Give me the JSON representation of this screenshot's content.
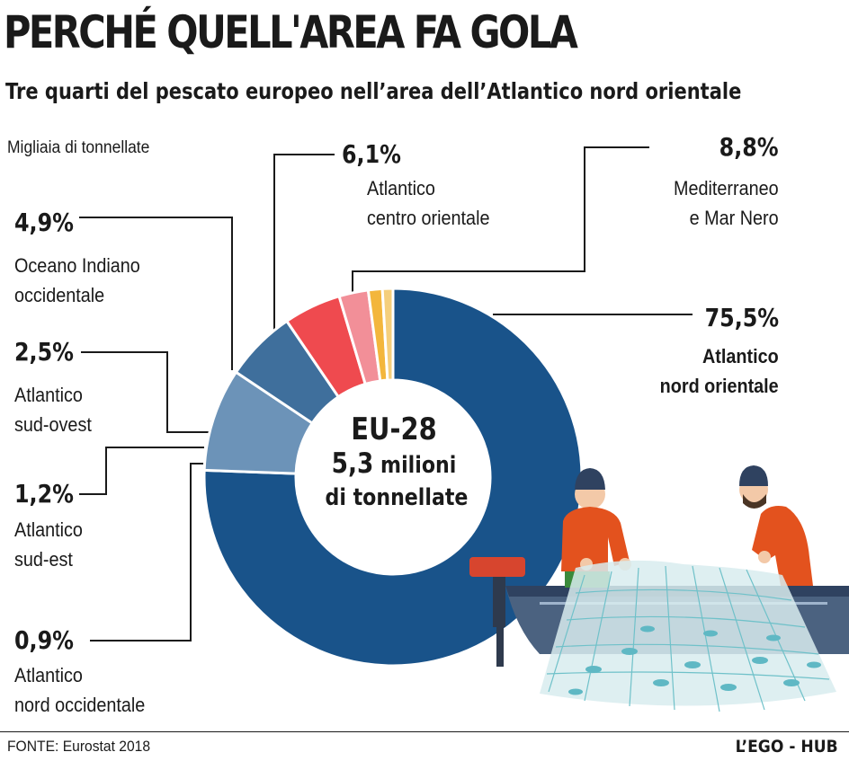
{
  "title": "PERCHÉ QUELL'AREA FA GOLA",
  "subtitle": "Tre quarti del pescato europeo nell’area dell’Atlantico nord orientale",
  "unit_note": "Migliaia di tonnellate",
  "center": {
    "line1": "EU-28",
    "line2_value": "5,3",
    "line2_unit": "milioni",
    "line3": "di tonnellate"
  },
  "footer": {
    "source": "FONTE: Eurostat 2018",
    "brand": "L’EGO - HUB"
  },
  "colors": {
    "atl_no": "#19538a",
    "mediterraneo": "#6c93b8",
    "atl_co": "#3f6f9c",
    "indiano": "#ef4a4f",
    "sud_ovest": "#f28f98",
    "sud_est": "#f3b63c",
    "nord_occ": "#f5cf7c"
  },
  "chart_data": {
    "type": "pie",
    "style": "donut",
    "total_label": "5,3 milioni di tonnellate",
    "slices": [
      {
        "label": "Atlantico nord orientale",
        "pct_text": "75,5%",
        "value": 75.5
      },
      {
        "label": "Mediterraneo e Mar Nero",
        "pct_text": "8,8%",
        "value": 8.8
      },
      {
        "label": "Atlantico centro orientale",
        "pct_text": "6,1%",
        "value": 6.1
      },
      {
        "label": "Oceano Indiano occidentale",
        "pct_text": "4,9%",
        "value": 4.9
      },
      {
        "label": "Atlantico sud-ovest",
        "pct_text": "2,5%",
        "value": 2.5
      },
      {
        "label": "Atlantico sud-est",
        "pct_text": "1,2%",
        "value": 1.2
      },
      {
        "label": "Atlantico nord occidentale",
        "pct_text": "0,9%",
        "value": 0.9
      }
    ]
  }
}
